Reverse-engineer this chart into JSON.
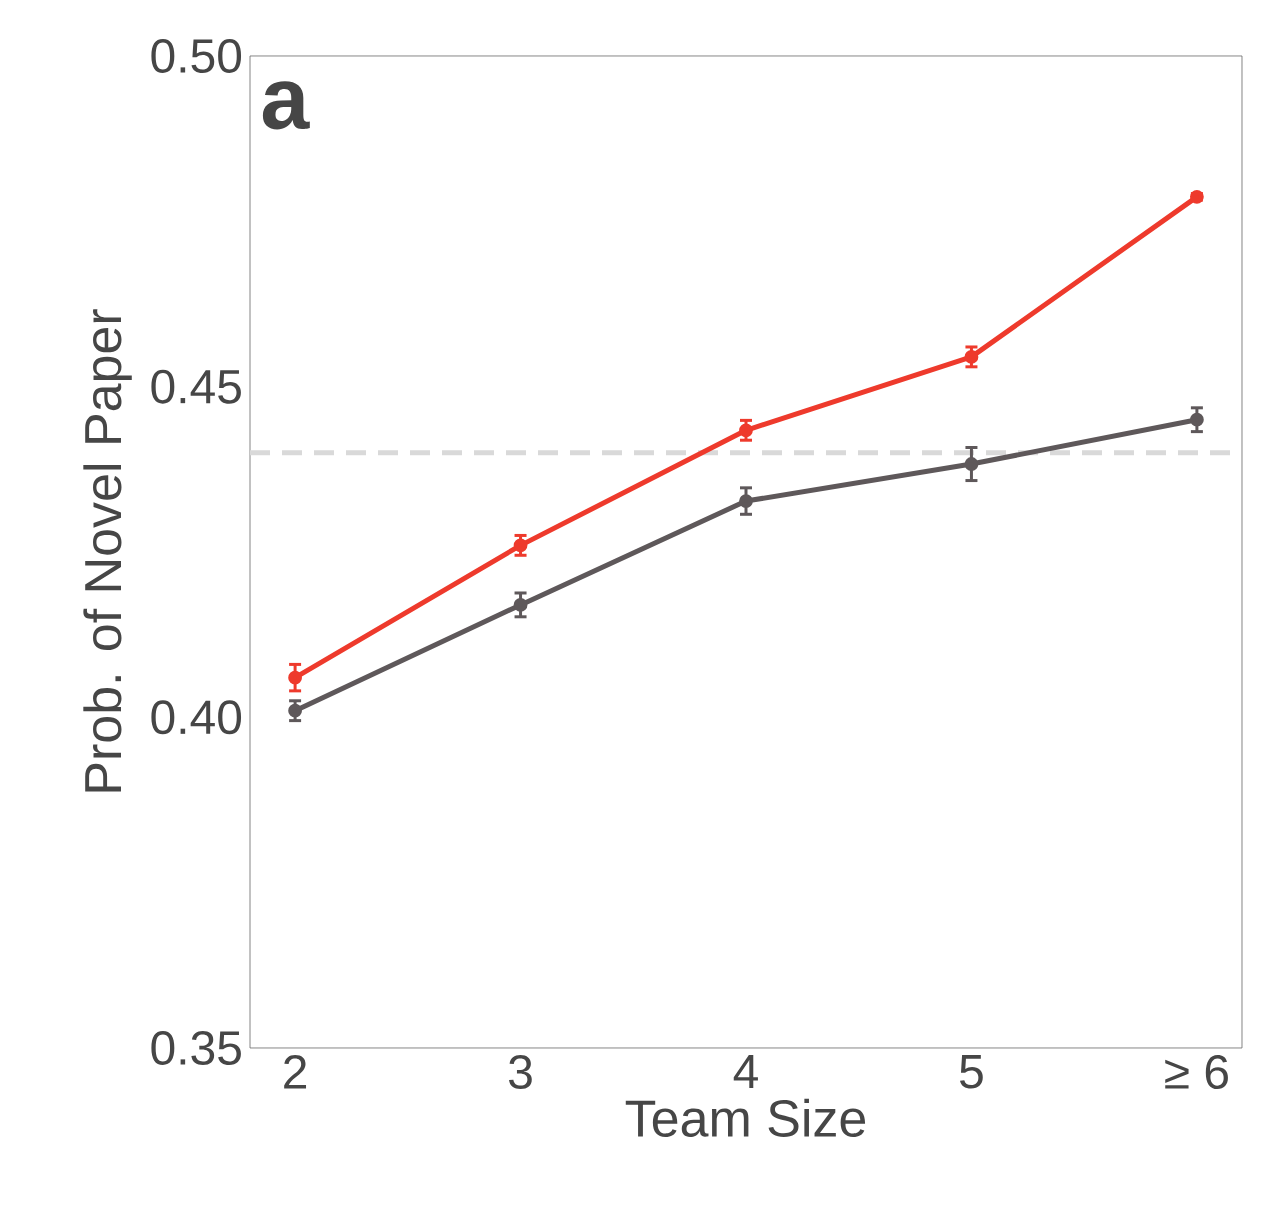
{
  "chart_data": {
    "type": "line",
    "xlabel": "Team Size",
    "ylabel": "Prob. of Novel Paper",
    "categories": [
      "2",
      "3",
      "4",
      "5",
      "≥ 6"
    ],
    "series": [
      {
        "color": "#ee3a2c",
        "values": [
          0.406,
          0.426,
          0.4434,
          0.4545,
          0.4787
        ],
        "errors": [
          0.002,
          0.0015,
          0.0015,
          0.0015,
          0.0005
        ]
      },
      {
        "color": "#5e585a",
        "values": [
          0.401,
          0.417,
          0.4327,
          0.4383,
          0.445
        ],
        "errors": [
          0.0015,
          0.0018,
          0.002,
          0.0025,
          0.0018
        ]
      }
    ],
    "ylim": [
      0.35,
      0.5
    ],
    "yticks": [
      {
        "value": 0.35,
        "label": "0.35"
      },
      {
        "value": 0.4,
        "label": "0.40"
      },
      {
        "value": 0.45,
        "label": "0.45"
      },
      {
        "value": 0.5,
        "label": "0.50"
      }
    ],
    "ref_lines": [
      {
        "axis": "y",
        "value": 0.44,
        "color": "#d9d9d9",
        "line_style": "dashed"
      }
    ],
    "annotations": [
      "**a**"
    ],
    "marker": "circle",
    "line_style": "solid"
  }
}
